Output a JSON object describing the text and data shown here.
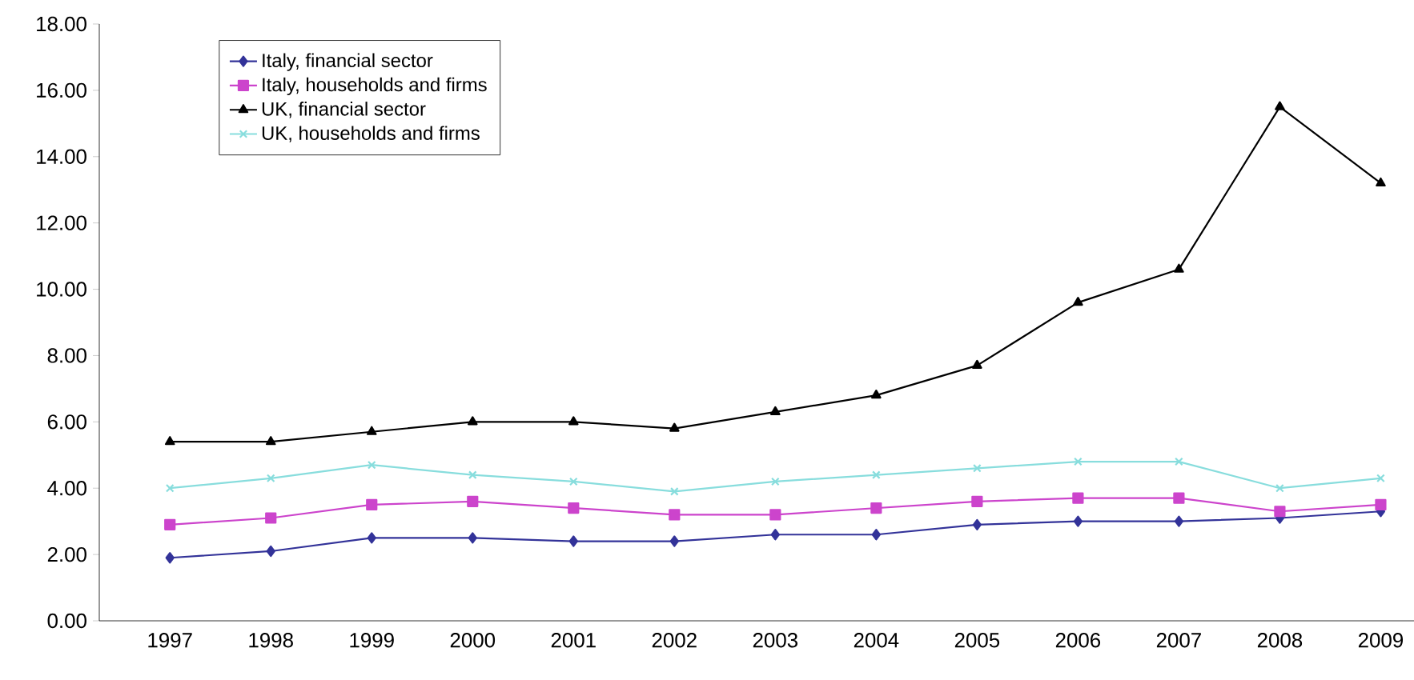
{
  "chart_data": {
    "type": "line",
    "categories": [
      "1997",
      "1998",
      "1999",
      "2000",
      "2001",
      "2002",
      "2003",
      "2004",
      "2005",
      "2006",
      "2007",
      "2008",
      "2009"
    ],
    "ylim": [
      0,
      18
    ],
    "yticks": [
      {
        "value": 0,
        "label": "0.00"
      },
      {
        "value": 2,
        "label": "2.00"
      },
      {
        "value": 4,
        "label": "4.00"
      },
      {
        "value": 6,
        "label": "6.00"
      },
      {
        "value": 8,
        "label": "8.00"
      },
      {
        "value": 10,
        "label": "10.00"
      },
      {
        "value": 12,
        "label": "12.00"
      },
      {
        "value": 14,
        "label": "14.00"
      },
      {
        "value": 16,
        "label": "16.00"
      },
      {
        "value": 18,
        "label": "18.00"
      }
    ],
    "grid": false,
    "legend": "top left",
    "line_style": "solid",
    "series": [
      {
        "name": "Italy, financial sector",
        "color": "#333399",
        "marker": "diamond",
        "values": [
          1.9,
          2.1,
          2.5,
          2.5,
          2.4,
          2.4,
          2.6,
          2.6,
          2.9,
          3.0,
          3.0,
          3.1,
          3.3
        ]
      },
      {
        "name": "Italy, households and firms",
        "color": "#cc44cc",
        "marker": "square",
        "values": [
          2.9,
          3.1,
          3.5,
          3.6,
          3.4,
          3.2,
          3.2,
          3.4,
          3.6,
          3.7,
          3.7,
          3.3,
          3.5
        ]
      },
      {
        "name": "UK, financial sector",
        "color": "#000000",
        "marker": "triangle",
        "values": [
          5.4,
          5.4,
          5.7,
          6.0,
          6.0,
          5.8,
          6.3,
          6.8,
          7.7,
          9.6,
          10.6,
          15.5,
          13.2
        ]
      },
      {
        "name": "UK, households and firms",
        "color": "#88dddd",
        "marker": "cross",
        "values": [
          4.0,
          4.3,
          4.7,
          4.4,
          4.2,
          3.9,
          4.2,
          4.4,
          4.6,
          4.8,
          4.8,
          4.0,
          4.3
        ]
      }
    ]
  }
}
